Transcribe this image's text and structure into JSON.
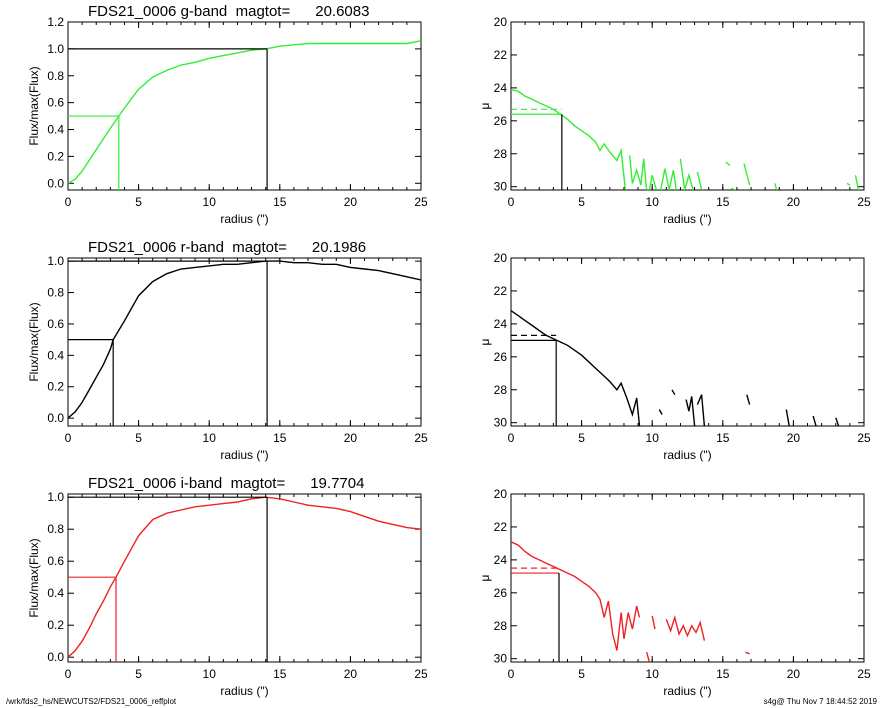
{
  "footer": {
    "path": "/wrk/fds2_hs/NEWCUTS2/FDS21_0006_reffplot",
    "stamp": "s4g@  Thu Nov  7 18:44:52 2019"
  },
  "chart_data": [
    {
      "type": "line",
      "title": "FDS21_0006 g-band  magtot=      20.6083",
      "xlabel": "radius (\")",
      "ylabel": "Flux/max(Flux)",
      "xlim": [
        0,
        25
      ],
      "ylim": [
        -0.05,
        1.2
      ],
      "xticks": [
        "0",
        "5",
        "10",
        "15",
        "20",
        "25"
      ],
      "yticks": [
        "0.0",
        "0.2",
        "0.4",
        "0.6",
        "0.8",
        "1.0",
        "1.2"
      ],
      "color": "#33ee33",
      "series": [
        {
          "x": [
            0,
            0.5,
            1,
            1.5,
            2,
            2.5,
            3,
            3.6,
            4,
            5,
            6,
            7,
            8,
            9,
            10,
            11,
            12,
            13,
            14,
            15,
            16,
            17,
            18,
            19,
            20,
            21,
            22,
            23,
            24,
            25
          ],
          "values": [
            0,
            0.03,
            0.09,
            0.17,
            0.25,
            0.33,
            0.41,
            0.5,
            0.56,
            0.7,
            0.79,
            0.84,
            0.88,
            0.9,
            0.93,
            0.95,
            0.97,
            0.99,
            1.0,
            1.02,
            1.03,
            1.04,
            1.04,
            1.04,
            1.04,
            1.04,
            1.04,
            1.04,
            1.04,
            1.06
          ]
        }
      ],
      "half_light": {
        "x": 3.6,
        "y": 0.5
      },
      "total": {
        "x": 14.1,
        "y": 1.0
      }
    },
    {
      "type": "line",
      "title": "",
      "xlabel": "radius (\")",
      "ylabel": "μ",
      "xlim": [
        0,
        25
      ],
      "ylim": [
        30.2,
        20
      ],
      "xticks": [
        "0",
        "5",
        "10",
        "15",
        "20",
        "25"
      ],
      "yticks": [
        "20",
        "22",
        "24",
        "26",
        "28",
        "30"
      ],
      "color": "#33ee33",
      "segments": [
        [
          [
            0,
            24.1
          ],
          [
            0.5,
            24.2
          ],
          [
            1,
            24.5
          ],
          [
            1.5,
            24.7
          ],
          [
            2,
            24.9
          ],
          [
            2.5,
            25.1
          ],
          [
            3,
            25.3
          ],
          [
            3.5,
            25.6
          ],
          [
            4,
            25.9
          ],
          [
            4.5,
            26.3
          ],
          [
            5,
            26.6
          ],
          [
            5.5,
            26.9
          ],
          [
            6,
            27.3
          ],
          [
            6.3,
            27.8
          ],
          [
            6.6,
            27.4
          ],
          [
            7,
            27.9
          ],
          [
            7.5,
            28.4
          ],
          [
            7.8,
            27.8
          ],
          [
            8.1,
            30.2
          ]
        ],
        [
          [
            8.4,
            28.1
          ],
          [
            8.6,
            29.8
          ],
          [
            8.9,
            29.0
          ],
          [
            9.2,
            29.9
          ],
          [
            9.4,
            28.3
          ],
          [
            9.6,
            30.2
          ]
        ],
        [
          [
            9.8,
            30.2
          ],
          [
            10.0,
            29.3
          ],
          [
            10.3,
            30.2
          ]
        ],
        [
          [
            10.6,
            30.2
          ],
          [
            10.9,
            28.9
          ],
          [
            11.2,
            30.2
          ],
          [
            11.5,
            29.0
          ],
          [
            11.7,
            30.2
          ]
        ],
        [
          [
            12.0,
            28.3
          ],
          [
            12.3,
            30.2
          ],
          [
            12.6,
            29.3
          ],
          [
            12.9,
            30.2
          ]
        ],
        [
          [
            13.2,
            29.1
          ],
          [
            13.5,
            30.2
          ]
        ],
        [
          [
            15.2,
            28.5
          ],
          [
            15.5,
            28.7
          ]
        ],
        [
          [
            15.6,
            30.1
          ],
          [
            15.9,
            30.2
          ]
        ],
        [
          [
            16.5,
            28.6
          ],
          [
            16.9,
            29.9
          ]
        ],
        [
          [
            18.7,
            29.8
          ],
          [
            18.8,
            30.2
          ]
        ],
        [
          [
            23.8,
            29.8
          ],
          [
            24.0,
            29.9
          ]
        ],
        [
          [
            24.4,
            29.3
          ],
          [
            24.6,
            30.2
          ]
        ]
      ],
      "reference_mu": 25.6,
      "dashed_mu": 25.3,
      "half_light_x": 3.6
    },
    {
      "type": "line",
      "title": "FDS21_0006 r-band  magtot=      20.1986",
      "xlabel": "radius (\")",
      "ylabel": "Flux/max(Flux)",
      "xlim": [
        0,
        25
      ],
      "ylim": [
        -0.05,
        1.02
      ],
      "xticks": [
        "0",
        "5",
        "10",
        "15",
        "20",
        "25"
      ],
      "yticks": [
        "0.0",
        "0.2",
        "0.4",
        "0.6",
        "0.8",
        "1.0"
      ],
      "color": "#000000",
      "series": [
        {
          "x": [
            0,
            0.5,
            1,
            1.5,
            2,
            2.5,
            3,
            3.2,
            4,
            5,
            6,
            7,
            8,
            9,
            10,
            11,
            12,
            13,
            14,
            15,
            16,
            17,
            18,
            19,
            20,
            21,
            22,
            23,
            24,
            25
          ],
          "values": [
            0,
            0.04,
            0.1,
            0.18,
            0.26,
            0.34,
            0.44,
            0.5,
            0.62,
            0.78,
            0.87,
            0.92,
            0.95,
            0.96,
            0.97,
            0.98,
            0.98,
            0.99,
            1.0,
            1.0,
            0.99,
            0.99,
            0.98,
            0.98,
            0.96,
            0.95,
            0.94,
            0.92,
            0.9,
            0.88
          ]
        }
      ],
      "half_light": {
        "x": 3.2,
        "y": 0.5
      },
      "total": {
        "x": 14.1,
        "y": 1.0
      }
    },
    {
      "type": "line",
      "title": "",
      "xlabel": "radius (\")",
      "ylabel": "μ",
      "xlim": [
        0,
        25
      ],
      "ylim": [
        30.2,
        20
      ],
      "xticks": [
        "0",
        "5",
        "10",
        "15",
        "20",
        "25"
      ],
      "yticks": [
        "20",
        "22",
        "24",
        "26",
        "28",
        "30"
      ],
      "color": "#000000",
      "segments": [
        [
          [
            0,
            23.2
          ],
          [
            0.5,
            23.5
          ],
          [
            1,
            23.8
          ],
          [
            1.5,
            24.1
          ],
          [
            2,
            24.4
          ],
          [
            2.5,
            24.7
          ],
          [
            3,
            24.9
          ],
          [
            3.5,
            25.1
          ],
          [
            4,
            25.3
          ],
          [
            4.5,
            25.6
          ],
          [
            5,
            25.9
          ],
          [
            5.5,
            26.3
          ],
          [
            6,
            26.7
          ],
          [
            6.5,
            27.1
          ],
          [
            7,
            27.5
          ],
          [
            7.5,
            28.0
          ],
          [
            7.8,
            27.6
          ],
          [
            8.2,
            28.5
          ],
          [
            8.6,
            29.5
          ],
          [
            8.9,
            28.5
          ],
          [
            9.1,
            30.2
          ]
        ],
        [
          [
            10.5,
            29.2
          ],
          [
            10.7,
            29.5
          ]
        ],
        [
          [
            11.4,
            28.0
          ],
          [
            11.6,
            28.3
          ]
        ],
        [
          [
            12.4,
            28.6
          ],
          [
            12.6,
            29.3
          ],
          [
            12.8,
            28.4
          ],
          [
            13.0,
            30.2
          ]
        ],
        [
          [
            13.2,
            28.9
          ],
          [
            13.5,
            28.3
          ],
          [
            13.7,
            30.2
          ]
        ],
        [
          [
            16.7,
            28.3
          ],
          [
            16.9,
            28.9
          ]
        ],
        [
          [
            19.5,
            29.2
          ],
          [
            19.7,
            30.2
          ]
        ],
        [
          [
            21.4,
            29.6
          ],
          [
            21.6,
            30.2
          ]
        ],
        [
          [
            23.0,
            29.7
          ],
          [
            23.2,
            30.2
          ]
        ]
      ],
      "reference_mu": 25.0,
      "dashed_mu": 24.7,
      "half_light_x": 3.2
    },
    {
      "type": "line",
      "title": "FDS21_0006 i-band  magtot=      19.7704",
      "xlabel": "radius (\")",
      "ylabel": "Flux/max(Flux)",
      "xlim": [
        0,
        25
      ],
      "ylim": [
        -0.03,
        1.02
      ],
      "xticks": [
        "0",
        "5",
        "10",
        "15",
        "20",
        "25"
      ],
      "yticks": [
        "0.0",
        "0.2",
        "0.4",
        "0.6",
        "0.8",
        "1.0"
      ],
      "color": "#ee2222",
      "series": [
        {
          "x": [
            0,
            0.5,
            1,
            1.5,
            2,
            2.5,
            3,
            3.4,
            4,
            5,
            6,
            7,
            8,
            9,
            10,
            11,
            12,
            13,
            14,
            15,
            16,
            17,
            18,
            19,
            20,
            21,
            22,
            23,
            24,
            25
          ],
          "values": [
            0,
            0.04,
            0.1,
            0.18,
            0.27,
            0.35,
            0.44,
            0.5,
            0.6,
            0.76,
            0.86,
            0.9,
            0.92,
            0.94,
            0.95,
            0.96,
            0.97,
            0.99,
            1.0,
            0.99,
            0.97,
            0.95,
            0.94,
            0.93,
            0.91,
            0.88,
            0.85,
            0.83,
            0.81,
            0.8
          ]
        }
      ],
      "half_light": {
        "x": 3.4,
        "y": 0.5
      },
      "total": {
        "x": 14.1,
        "y": 1.0
      }
    },
    {
      "type": "line",
      "title": "",
      "xlabel": "radius (\")",
      "ylabel": "μ",
      "xlim": [
        0,
        25
      ],
      "ylim": [
        30.2,
        20
      ],
      "xticks": [
        "0",
        "5",
        "10",
        "15",
        "20",
        "25"
      ],
      "yticks": [
        "20",
        "22",
        "24",
        "26",
        "28",
        "30"
      ],
      "color": "#ee2222",
      "segments": [
        [
          [
            0,
            22.9
          ],
          [
            0.5,
            23.1
          ],
          [
            1,
            23.5
          ],
          [
            1.5,
            23.8
          ],
          [
            2,
            24.0
          ],
          [
            2.5,
            24.2
          ],
          [
            3,
            24.4
          ],
          [
            3.5,
            24.6
          ],
          [
            4,
            24.8
          ],
          [
            4.5,
            25.0
          ],
          [
            5,
            25.3
          ],
          [
            5.5,
            25.6
          ],
          [
            6,
            26.0
          ],
          [
            6.3,
            26.4
          ],
          [
            6.6,
            27.5
          ],
          [
            6.9,
            26.5
          ],
          [
            7.2,
            28.5
          ],
          [
            7.5,
            29.5
          ],
          [
            7.8,
            27.2
          ],
          [
            8.0,
            28.8
          ],
          [
            8.3,
            27.2
          ],
          [
            8.6,
            28.2
          ],
          [
            8.9,
            26.8
          ],
          [
            9.1,
            27.5
          ]
        ],
        [
          [
            9.6,
            29.6
          ],
          [
            9.8,
            30.2
          ]
        ],
        [
          [
            10.0,
            27.4
          ],
          [
            10.2,
            28.2
          ]
        ],
        [
          [
            11.0,
            27.6
          ],
          [
            11.3,
            28.3
          ],
          [
            11.6,
            27.5
          ],
          [
            11.9,
            28.5
          ],
          [
            12.2,
            28.0
          ],
          [
            12.5,
            28.6
          ],
          [
            12.8,
            28.0
          ],
          [
            13.1,
            28.4
          ],
          [
            13.4,
            27.8
          ],
          [
            13.7,
            28.9
          ]
        ],
        [
          [
            16.6,
            29.6
          ],
          [
            16.9,
            29.7
          ]
        ]
      ],
      "reference_mu": 24.8,
      "dashed_mu": 24.5,
      "half_light_x": 3.4
    }
  ]
}
